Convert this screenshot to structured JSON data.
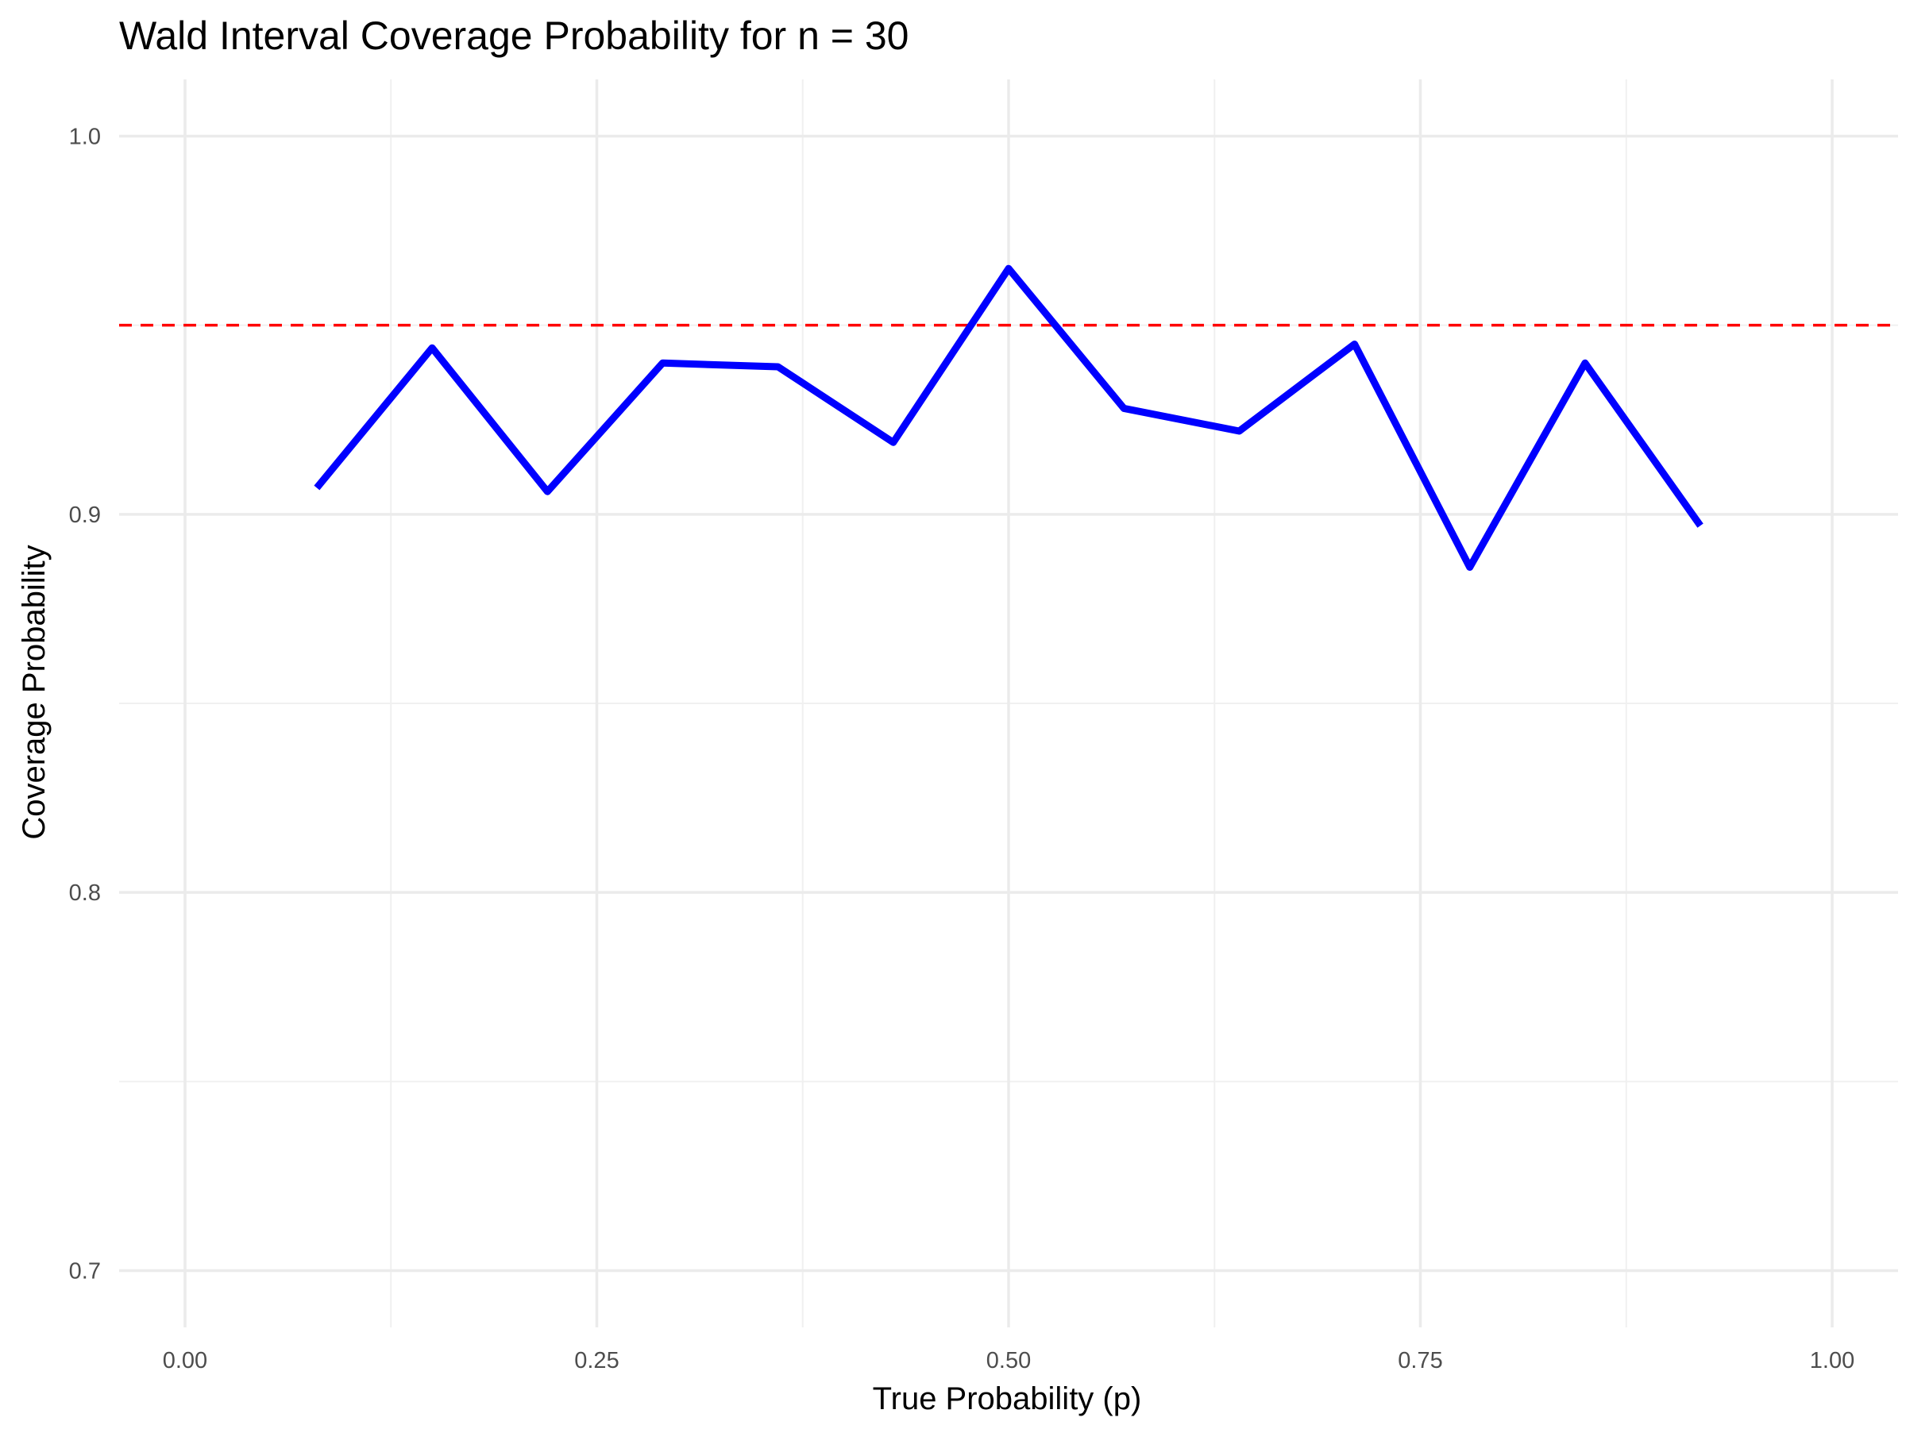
{
  "chart_data": {
    "type": "line",
    "title": "Wald Interval Coverage Probability for n = 30",
    "xlabel": "True Probability (p)",
    "ylabel": "Coverage Probability",
    "xlim": [
      -0.04,
      1.04
    ],
    "ylim": [
      0.685,
      1.015
    ],
    "xticks": [
      0.0,
      0.25,
      0.5,
      0.75,
      1.0
    ],
    "xtick_labels": [
      "0.00",
      "0.25",
      "0.50",
      "0.75",
      "1.00"
    ],
    "yticks": [
      0.7,
      0.8,
      0.9,
      1.0
    ],
    "ytick_labels": [
      "0.7",
      "0.8",
      "0.9",
      "1.0"
    ],
    "grid": true,
    "legend": "none",
    "series": [
      {
        "color": "#0000ff",
        "x": [
          0.08,
          0.15,
          0.22,
          0.29,
          0.36,
          0.43,
          0.5,
          0.57,
          0.64,
          0.71,
          0.78,
          0.85,
          0.92
        ],
        "values": [
          0.907,
          0.944,
          0.906,
          0.94,
          0.939,
          0.919,
          0.965,
          0.928,
          0.922,
          0.945,
          0.886,
          0.94,
          0.897
        ]
      }
    ],
    "reference_line": {
      "y": 0.95,
      "color": "#ff0000",
      "style": "dashed"
    }
  }
}
